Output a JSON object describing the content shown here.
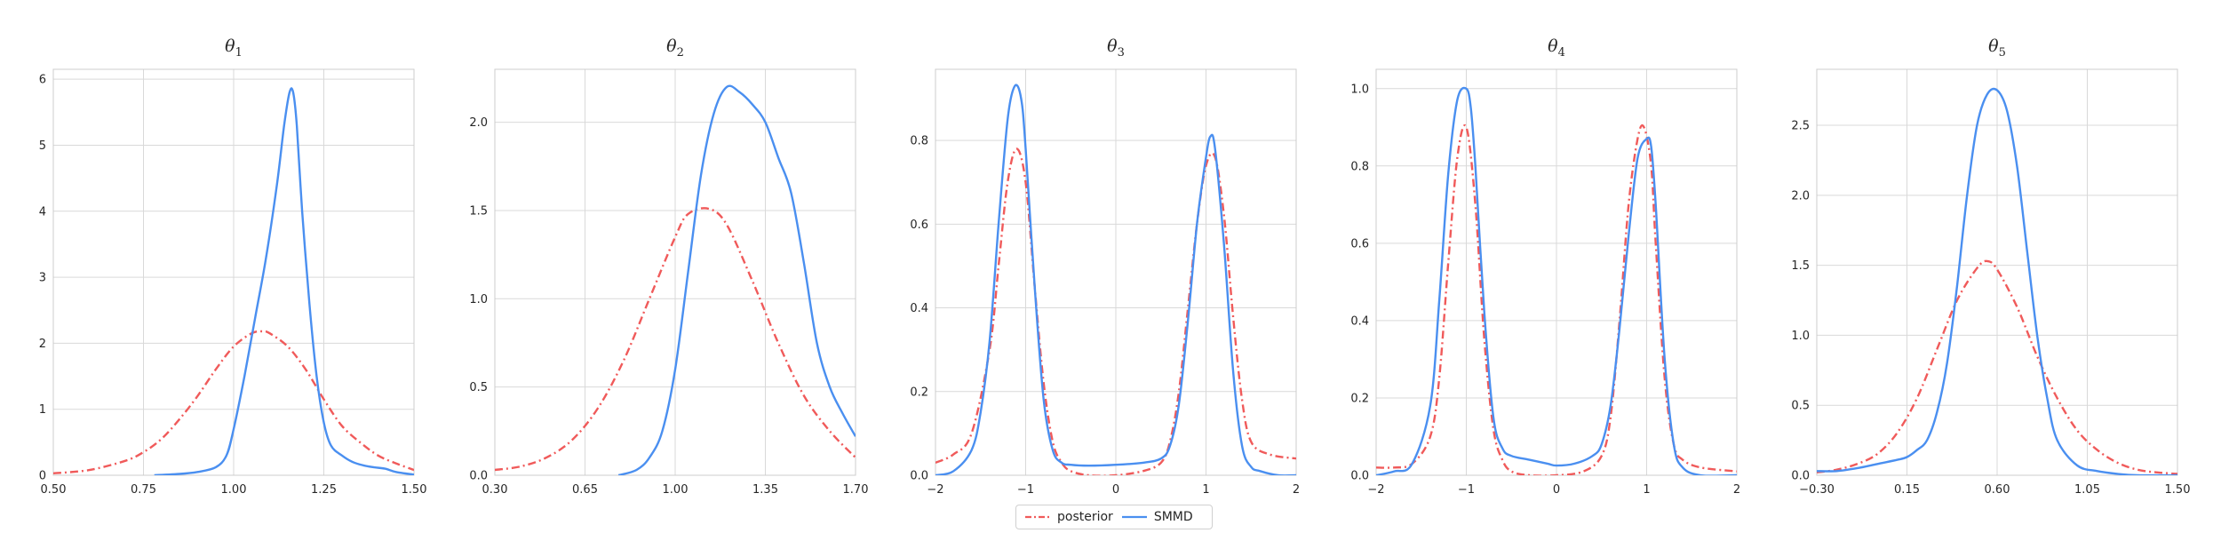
{
  "legend": {
    "posterior": "posterior",
    "smmd": "SMMD"
  },
  "colors": {
    "posterior": "#f05a5a",
    "smmd": "#4a8ff0",
    "grid": "#d9d9d9",
    "axis": "#cccccc"
  },
  "chart_data": [
    {
      "type": "line",
      "title": "θ1",
      "xlim": [
        0.5,
        1.5
      ],
      "ylim": [
        0,
        6.15
      ],
      "xticks": [
        0.5,
        0.75,
        1.0,
        1.25,
        1.5
      ],
      "xtick_labels": [
        "0.50",
        "0.75",
        "1.00",
        "1.25",
        "1.50"
      ],
      "yticks": [
        0,
        1,
        2,
        3,
        4,
        5,
        6
      ],
      "ytick_labels": [
        "0",
        "1",
        "2",
        "3",
        "4",
        "5",
        "6"
      ],
      "grid": true,
      "series": [
        {
          "name": "posterior",
          "style": "dashdot",
          "x": [
            0.5,
            0.6,
            0.7,
            0.75,
            0.8,
            0.85,
            0.9,
            0.95,
            1.0,
            1.05,
            1.08,
            1.1,
            1.15,
            1.2,
            1.25,
            1.3,
            1.35,
            1.4,
            1.45,
            1.5
          ],
          "y": [
            0.03,
            0.08,
            0.22,
            0.35,
            0.55,
            0.85,
            1.2,
            1.6,
            1.95,
            2.15,
            2.18,
            2.15,
            1.95,
            1.6,
            1.15,
            0.75,
            0.5,
            0.3,
            0.18,
            0.08
          ]
        },
        {
          "name": "SMMD",
          "style": "solid",
          "x": [
            0.78,
            0.85,
            0.9,
            0.95,
            0.98,
            1.0,
            1.03,
            1.06,
            1.09,
            1.12,
            1.14,
            1.155,
            1.165,
            1.175,
            1.19,
            1.21,
            1.23,
            1.25,
            1.27,
            1.3,
            1.33,
            1.36,
            1.39,
            1.42,
            1.45,
            1.5
          ],
          "y": [
            0.0,
            0.02,
            0.05,
            0.12,
            0.3,
            0.7,
            1.5,
            2.4,
            3.3,
            4.4,
            5.3,
            5.8,
            5.8,
            5.3,
            4.0,
            2.6,
            1.5,
            0.8,
            0.45,
            0.3,
            0.2,
            0.15,
            0.12,
            0.1,
            0.05,
            0.01
          ]
        }
      ]
    },
    {
      "type": "line",
      "title": "θ2",
      "xlim": [
        0.3,
        1.7
      ],
      "ylim": [
        0,
        2.3
      ],
      "xticks": [
        0.3,
        0.65,
        1.0,
        1.35,
        1.7
      ],
      "xtick_labels": [
        "0.30",
        "0.65",
        "1.00",
        "1.35",
        "1.70"
      ],
      "yticks": [
        0,
        0.5,
        1.0,
        1.5,
        2.0
      ],
      "ytick_labels": [
        "0.0",
        "0.5",
        "1.0",
        "1.5",
        "2.0"
      ],
      "grid": true,
      "series": [
        {
          "name": "posterior",
          "style": "dashdot",
          "x": [
            0.3,
            0.4,
            0.5,
            0.6,
            0.7,
            0.8,
            0.9,
            1.0,
            1.05,
            1.13,
            1.2,
            1.3,
            1.4,
            1.5,
            1.6,
            1.7
          ],
          "y": [
            0.03,
            0.05,
            0.1,
            0.2,
            0.38,
            0.65,
            1.0,
            1.35,
            1.48,
            1.51,
            1.42,
            1.1,
            0.75,
            0.45,
            0.25,
            0.1
          ]
        },
        {
          "name": "SMMD",
          "style": "solid",
          "x": [
            0.78,
            0.85,
            0.9,
            0.95,
            1.0,
            1.05,
            1.1,
            1.15,
            1.2,
            1.25,
            1.3,
            1.35,
            1.4,
            1.45,
            1.5,
            1.55,
            1.6,
            1.65,
            1.7
          ],
          "y": [
            0.0,
            0.03,
            0.1,
            0.25,
            0.6,
            1.15,
            1.7,
            2.05,
            2.2,
            2.17,
            2.1,
            2.0,
            1.8,
            1.6,
            1.2,
            0.75,
            0.5,
            0.35,
            0.22
          ]
        }
      ]
    },
    {
      "type": "line",
      "title": "θ3",
      "xlim": [
        -2,
        2
      ],
      "ylim": [
        0,
        0.97
      ],
      "xticks": [
        -2,
        -1,
        0,
        1,
        2
      ],
      "xtick_labels": [
        "−2",
        "−1",
        "0",
        "1",
        "2"
      ],
      "yticks": [
        0,
        0.2,
        0.4,
        0.6,
        0.8
      ],
      "ytick_labels": [
        "0.0",
        "0.2",
        "0.4",
        "0.6",
        "0.8"
      ],
      "grid": true,
      "series": [
        {
          "name": "posterior",
          "style": "dashdot",
          "x": [
            -2,
            -1.8,
            -1.6,
            -1.4,
            -1.3,
            -1.2,
            -1.1,
            -1.0,
            -0.9,
            -0.8,
            -0.7,
            -0.6,
            -0.5,
            -0.3,
            0,
            0.3,
            0.5,
            0.6,
            0.7,
            0.8,
            0.9,
            1.0,
            1.1,
            1.2,
            1.3,
            1.4,
            1.5,
            1.7,
            2.0
          ],
          "y": [
            0.03,
            0.05,
            0.1,
            0.3,
            0.5,
            0.7,
            0.78,
            0.7,
            0.45,
            0.22,
            0.08,
            0.03,
            0.01,
            0.0,
            0.0,
            0.01,
            0.03,
            0.08,
            0.2,
            0.4,
            0.6,
            0.74,
            0.76,
            0.62,
            0.38,
            0.18,
            0.08,
            0.05,
            0.04
          ]
        },
        {
          "name": "SMMD",
          "style": "solid",
          "x": [
            -2,
            -1.8,
            -1.6,
            -1.5,
            -1.4,
            -1.3,
            -1.2,
            -1.12,
            -1.05,
            -1.0,
            -0.9,
            -0.8,
            -0.7,
            -0.6,
            -0.5,
            -0.3,
            0,
            0.3,
            0.5,
            0.6,
            0.7,
            0.8,
            0.9,
            1.0,
            1.05,
            1.1,
            1.2,
            1.3,
            1.4,
            1.5,
            1.6,
            1.8,
            2.0
          ],
          "y": [
            0.0,
            0.01,
            0.06,
            0.15,
            0.32,
            0.6,
            0.85,
            0.93,
            0.9,
            0.78,
            0.45,
            0.18,
            0.06,
            0.03,
            0.025,
            0.023,
            0.025,
            0.03,
            0.04,
            0.07,
            0.17,
            0.37,
            0.6,
            0.76,
            0.81,
            0.78,
            0.55,
            0.25,
            0.07,
            0.02,
            0.01,
            0.0,
            0.0
          ]
        }
      ]
    },
    {
      "type": "line",
      "title": "θ4",
      "xlim": [
        -2,
        2
      ],
      "ylim": [
        0,
        1.05
      ],
      "xticks": [
        -2,
        -1,
        0,
        1,
        2
      ],
      "xtick_labels": [
        "−2",
        "−1",
        "0",
        "1",
        "2"
      ],
      "yticks": [
        0,
        0.2,
        0.4,
        0.6,
        0.8,
        1.0
      ],
      "ytick_labels": [
        "0.0",
        "0.2",
        "0.4",
        "0.6",
        "0.8",
        "1.0"
      ],
      "grid": true,
      "series": [
        {
          "name": "posterior",
          "style": "dashdot",
          "x": [
            -2,
            -1.8,
            -1.6,
            -1.4,
            -1.3,
            -1.2,
            -1.1,
            -1.0,
            -0.9,
            -0.8,
            -0.7,
            -0.6,
            -0.5,
            -0.3,
            0,
            0.3,
            0.5,
            0.6,
            0.7,
            0.8,
            0.9,
            0.97,
            1.05,
            1.1,
            1.2,
            1.3,
            1.4,
            1.6,
            2.0
          ],
          "y": [
            0.02,
            0.02,
            0.03,
            0.1,
            0.25,
            0.55,
            0.82,
            0.9,
            0.7,
            0.35,
            0.12,
            0.04,
            0.01,
            0.0,
            0.0,
            0.01,
            0.05,
            0.15,
            0.4,
            0.7,
            0.87,
            0.9,
            0.8,
            0.6,
            0.25,
            0.08,
            0.04,
            0.02,
            0.01
          ]
        },
        {
          "name": "SMMD",
          "style": "solid",
          "x": [
            -2,
            -1.8,
            -1.6,
            -1.4,
            -1.3,
            -1.2,
            -1.1,
            -1.0,
            -0.95,
            -0.9,
            -0.8,
            -0.7,
            -0.6,
            -0.5,
            -0.3,
            -0.1,
            0,
            0.2,
            0.4,
            0.5,
            0.6,
            0.7,
            0.8,
            0.9,
            1.0,
            1.05,
            1.1,
            1.2,
            1.3,
            1.4,
            1.6,
            2.0
          ],
          "y": [
            0.0,
            0.01,
            0.03,
            0.18,
            0.45,
            0.78,
            0.97,
            1.0,
            0.95,
            0.8,
            0.42,
            0.15,
            0.07,
            0.05,
            0.04,
            0.03,
            0.025,
            0.03,
            0.05,
            0.08,
            0.18,
            0.38,
            0.62,
            0.82,
            0.87,
            0.85,
            0.7,
            0.3,
            0.08,
            0.02,
            0.0,
            0.0
          ]
        }
      ]
    },
    {
      "type": "line",
      "title": "θ5",
      "xlim": [
        -0.3,
        1.5
      ],
      "ylim": [
        0,
        2.9
      ],
      "xticks": [
        -0.3,
        0.15,
        0.6,
        1.05,
        1.5
      ],
      "xtick_labels": [
        "−0.30",
        "0.15",
        "0.60",
        "1.05",
        "1.50"
      ],
      "yticks": [
        0,
        0.5,
        1.0,
        1.5,
        2.0,
        2.5
      ],
      "ytick_labels": [
        "0.0",
        "0.5",
        "1.0",
        "1.5",
        "2.0",
        "2.5"
      ],
      "grid": true,
      "series": [
        {
          "name": "posterior",
          "style": "dashdot",
          "x": [
            -0.3,
            -0.2,
            -0.1,
            0.0,
            0.1,
            0.2,
            0.3,
            0.4,
            0.5,
            0.55,
            0.6,
            0.7,
            0.8,
            0.9,
            1.0,
            1.1,
            1.2,
            1.3,
            1.4,
            1.5
          ],
          "y": [
            0.02,
            0.04,
            0.08,
            0.15,
            0.3,
            0.55,
            0.9,
            1.25,
            1.48,
            1.53,
            1.47,
            1.2,
            0.85,
            0.55,
            0.32,
            0.18,
            0.09,
            0.04,
            0.02,
            0.01
          ]
        },
        {
          "name": "SMMD",
          "style": "solid",
          "x": [
            -0.3,
            -0.2,
            -0.1,
            0.0,
            0.1,
            0.15,
            0.2,
            0.25,
            0.3,
            0.35,
            0.4,
            0.45,
            0.5,
            0.55,
            0.6,
            0.65,
            0.7,
            0.75,
            0.8,
            0.85,
            0.9,
            1.0,
            1.1,
            1.2,
            1.3,
            1.5
          ],
          "y": [
            0.03,
            0.03,
            0.05,
            0.08,
            0.11,
            0.13,
            0.18,
            0.25,
            0.45,
            0.8,
            1.35,
            2.0,
            2.5,
            2.72,
            2.75,
            2.6,
            2.2,
            1.6,
            1.0,
            0.55,
            0.25,
            0.07,
            0.03,
            0.01,
            0.0,
            0.0
          ]
        }
      ]
    }
  ]
}
